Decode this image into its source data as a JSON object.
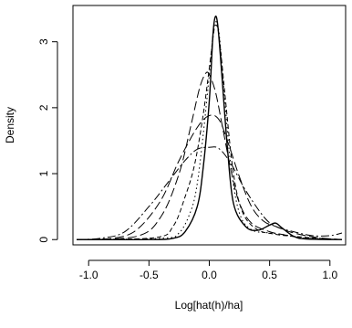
{
  "chart_data": {
    "type": "line",
    "title": "",
    "xlabel": "Log[hat(h)/ha]",
    "ylabel": "Density",
    "xlim": [
      -1.13,
      1.13
    ],
    "ylim": [
      -0.08,
      3.55
    ],
    "xticks": [
      -1.0,
      -0.5,
      0.0,
      0.5,
      1.0
    ],
    "xtick_labels": [
      "-1.0",
      "-0.5",
      "0.0",
      "0.5",
      "1.0"
    ],
    "yticks": [
      0,
      1,
      2,
      3
    ],
    "ytick_labels": [
      "0",
      "1",
      "2",
      "3"
    ],
    "grid": false,
    "legend": "none",
    "line_color": "#000000",
    "series": [
      {
        "line_style": "solid",
        "points": [
          [
            -1.1,
            0
          ],
          [
            -0.5,
            0
          ],
          [
            -0.3,
            0.02
          ],
          [
            -0.2,
            0.12
          ],
          [
            -0.1,
            0.5
          ],
          [
            -0.05,
            1.1
          ],
          [
            0,
            2.1
          ],
          [
            0.03,
            3.1
          ],
          [
            0.05,
            3.38
          ],
          [
            0.07,
            3.25
          ],
          [
            0.1,
            2.6
          ],
          [
            0.15,
            1.4
          ],
          [
            0.2,
            0.55
          ],
          [
            0.3,
            0.2
          ],
          [
            0.4,
            0.14
          ],
          [
            0.5,
            0.22
          ],
          [
            0.55,
            0.25
          ],
          [
            0.6,
            0.18
          ],
          [
            0.7,
            0.05
          ],
          [
            0.8,
            0.01
          ],
          [
            1.1,
            0
          ]
        ]
      },
      {
        "line_style": "dotted",
        "points": [
          [
            -1.1,
            0
          ],
          [
            -0.4,
            0.02
          ],
          [
            -0.25,
            0.1
          ],
          [
            -0.15,
            0.45
          ],
          [
            -0.1,
            0.85
          ],
          [
            -0.05,
            1.6
          ],
          [
            0,
            2.5
          ],
          [
            0.03,
            3.1
          ],
          [
            0.05,
            3.3
          ],
          [
            0.08,
            3.15
          ],
          [
            0.12,
            2.3
          ],
          [
            0.18,
            1.1
          ],
          [
            0.25,
            0.4
          ],
          [
            0.35,
            0.15
          ],
          [
            0.5,
            0.1
          ],
          [
            0.6,
            0.08
          ],
          [
            0.8,
            0.02
          ],
          [
            1.1,
            0
          ]
        ]
      },
      {
        "line_style": "short-dash",
        "points": [
          [
            -1.1,
            0
          ],
          [
            -0.45,
            0.03
          ],
          [
            -0.3,
            0.2
          ],
          [
            -0.2,
            0.65
          ],
          [
            -0.12,
            1.15
          ],
          [
            -0.05,
            1.9
          ],
          [
            0,
            2.6
          ],
          [
            0.03,
            3.05
          ],
          [
            0.05,
            3.25
          ],
          [
            0.08,
            3.1
          ],
          [
            0.13,
            2.2
          ],
          [
            0.2,
            1.0
          ],
          [
            0.28,
            0.4
          ],
          [
            0.4,
            0.15
          ],
          [
            0.55,
            0.08
          ],
          [
            0.7,
            0.05
          ],
          [
            0.9,
            0.02
          ],
          [
            1.1,
            0
          ]
        ]
      },
      {
        "line_style": "long-dash",
        "points": [
          [
            -1.1,
            0
          ],
          [
            -0.6,
            0.05
          ],
          [
            -0.4,
            0.35
          ],
          [
            -0.25,
            1.0
          ],
          [
            -0.15,
            1.75
          ],
          [
            -0.08,
            2.3
          ],
          [
            -0.03,
            2.52
          ],
          [
            0,
            2.5
          ],
          [
            0.05,
            2.25
          ],
          [
            0.1,
            1.8
          ],
          [
            0.18,
            1.05
          ],
          [
            0.25,
            0.55
          ],
          [
            0.35,
            0.25
          ],
          [
            0.5,
            0.12
          ],
          [
            0.6,
            0.08
          ],
          [
            0.8,
            0.02
          ],
          [
            1.1,
            0
          ]
        ]
      },
      {
        "line_style": "long-dash",
        "points": [
          [
            -1.1,
            0
          ],
          [
            -0.8,
            0.02
          ],
          [
            -0.6,
            0.15
          ],
          [
            -0.4,
            0.6
          ],
          [
            -0.25,
            1.2
          ],
          [
            -0.1,
            1.7
          ],
          [
            0,
            1.88
          ],
          [
            0.08,
            1.82
          ],
          [
            0.15,
            1.5
          ],
          [
            0.25,
            0.95
          ],
          [
            0.35,
            0.5
          ],
          [
            0.45,
            0.28
          ],
          [
            0.55,
            0.2
          ],
          [
            0.7,
            0.1
          ],
          [
            0.9,
            0.03
          ],
          [
            1.1,
            0
          ]
        ]
      },
      {
        "line_style": "dash-dot",
        "points": [
          [
            -1.1,
            0
          ],
          [
            -0.9,
            0.02
          ],
          [
            -0.7,
            0.12
          ],
          [
            -0.5,
            0.5
          ],
          [
            -0.35,
            0.85
          ],
          [
            -0.2,
            1.2
          ],
          [
            -0.1,
            1.37
          ],
          [
            0,
            1.4
          ],
          [
            0.08,
            1.38
          ],
          [
            0.18,
            1.15
          ],
          [
            0.3,
            0.75
          ],
          [
            0.45,
            0.35
          ],
          [
            0.55,
            0.2
          ],
          [
            0.7,
            0.12
          ],
          [
            0.85,
            0.06
          ],
          [
            1.0,
            0.06
          ],
          [
            1.1,
            0.1
          ]
        ]
      }
    ]
  }
}
